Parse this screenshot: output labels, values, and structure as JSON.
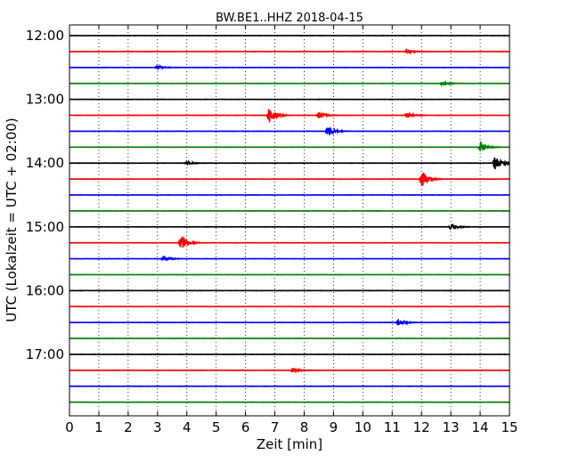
{
  "chart_data": {
    "type": "line",
    "title": "BW.BE1..HHZ 2018-04-15",
    "xlabel": "Zeit  [min]",
    "ylabel": "UTC (Lokalzeit = UTC + 02:00)",
    "xlim": [
      0,
      15
    ],
    "x_ticks": [
      0,
      1,
      2,
      3,
      4,
      5,
      6,
      7,
      8,
      9,
      10,
      11,
      12,
      13,
      14,
      15
    ],
    "x_grid": "dotted",
    "y_ticks": [
      "12:00",
      "13:00",
      "14:00",
      "15:00",
      "16:00",
      "17:00"
    ],
    "trace_interval_min": 15,
    "color_cycle": [
      "#000000",
      "#ff0000",
      "#0000ff",
      "#008000"
    ],
    "traces": [
      {
        "start": "12:00",
        "color": "#000000",
        "events": []
      },
      {
        "start": "12:15",
        "color": "#ff0000",
        "events": [
          {
            "t": 11.5,
            "amp": 0.25
          }
        ]
      },
      {
        "start": "12:30",
        "color": "#0000ff",
        "events": [
          {
            "t": 3.0,
            "amp": 0.3
          }
        ]
      },
      {
        "start": "12:45",
        "color": "#008000",
        "events": [
          {
            "t": 12.7,
            "amp": 0.25
          }
        ]
      },
      {
        "start": "13:00",
        "color": "#000000",
        "events": []
      },
      {
        "start": "13:15",
        "color": "#ff0000",
        "events": [
          {
            "t": 6.8,
            "amp": 1.2
          },
          {
            "t": 8.5,
            "amp": 0.45
          },
          {
            "t": 11.5,
            "amp": 0.45
          }
        ]
      },
      {
        "start": "13:30",
        "color": "#0000ff",
        "events": [
          {
            "t": 8.8,
            "amp": 0.75
          }
        ]
      },
      {
        "start": "13:45",
        "color": "#008000",
        "events": [
          {
            "t": 14.0,
            "amp": 0.75
          }
        ]
      },
      {
        "start": "14:00",
        "color": "#000000",
        "events": [
          {
            "t": 4.0,
            "amp": 0.2
          },
          {
            "t": 14.5,
            "amp": 1.0
          }
        ]
      },
      {
        "start": "14:15",
        "color": "#ff0000",
        "events": [
          {
            "t": 12.0,
            "amp": 1.4
          }
        ]
      },
      {
        "start": "14:30",
        "color": "#0000ff",
        "events": []
      },
      {
        "start": "14:45",
        "color": "#008000",
        "events": []
      },
      {
        "start": "15:00",
        "color": "#000000",
        "events": [
          {
            "t": 13.0,
            "amp": 0.45
          }
        ]
      },
      {
        "start": "15:15",
        "color": "#ff0000",
        "events": [
          {
            "t": 3.8,
            "amp": 1.1
          }
        ]
      },
      {
        "start": "15:30",
        "color": "#0000ff",
        "events": [
          {
            "t": 3.2,
            "amp": 0.4
          }
        ]
      },
      {
        "start": "15:45",
        "color": "#008000",
        "events": []
      },
      {
        "start": "16:00",
        "color": "#000000",
        "events": []
      },
      {
        "start": "16:15",
        "color": "#ff0000",
        "events": []
      },
      {
        "start": "16:30",
        "color": "#0000ff",
        "events": [
          {
            "t": 11.2,
            "amp": 0.45
          }
        ]
      },
      {
        "start": "16:45",
        "color": "#008000",
        "events": []
      },
      {
        "start": "17:00",
        "color": "#000000",
        "events": []
      },
      {
        "start": "17:15",
        "color": "#ff0000",
        "events": [
          {
            "t": 7.6,
            "amp": 0.35
          }
        ]
      },
      {
        "start": "17:30",
        "color": "#0000ff",
        "events": []
      },
      {
        "start": "17:45",
        "color": "#008000",
        "events": []
      }
    ]
  }
}
